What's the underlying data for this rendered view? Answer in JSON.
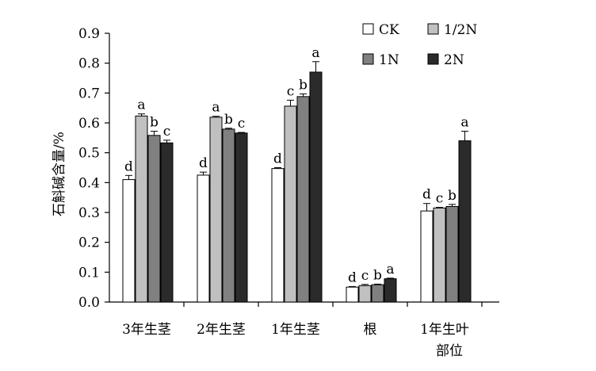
{
  "chart_data": {
    "type": "bar",
    "title": "",
    "xlabel": "",
    "ylabel": "石斛碱含量/%",
    "ylim": [
      0,
      0.9
    ],
    "yticks": [
      "0.0",
      "0.1",
      "0.2",
      "0.3",
      "0.4",
      "0.5",
      "0.6",
      "0.7",
      "0.8",
      "0.9"
    ],
    "grid": false,
    "legend_position": "top-right",
    "categories": [
      "3年生茎",
      "2年生茎",
      "1年生茎",
      "根",
      "1年生叶"
    ],
    "category_extra_line": "部位",
    "series": [
      {
        "name": "CK",
        "color": "#ffffff",
        "values": [
          0.41,
          0.425,
          0.447,
          0.05,
          0.305
        ],
        "errors": [
          0.014,
          0.01,
          0.003,
          0.002,
          0.025
        ],
        "sig": [
          "d",
          "d",
          "d",
          "d",
          "d"
        ]
      },
      {
        "name": "1/2N",
        "color": "#c0c0c0",
        "values": [
          0.623,
          0.619,
          0.656,
          0.055,
          0.315
        ],
        "errors": [
          0.007,
          0.003,
          0.02,
          0.004,
          0.002
        ],
        "sig": [
          "a",
          "a",
          "c",
          "c",
          "c"
        ]
      },
      {
        "name": "1N",
        "color": "#808080",
        "values": [
          0.558,
          0.579,
          0.688,
          0.058,
          0.32
        ],
        "errors": [
          0.014,
          0.003,
          0.009,
          0.002,
          0.007
        ],
        "sig": [
          "b",
          "b",
          "b",
          "b",
          "b"
        ]
      },
      {
        "name": "2N",
        "color": "#2b2b2b",
        "values": [
          0.533,
          0.566,
          0.77,
          0.078,
          0.54
        ],
        "errors": [
          0.009,
          0.002,
          0.035,
          0.002,
          0.032
        ],
        "sig": [
          "c",
          "c",
          "a",
          "a",
          "a"
        ]
      }
    ]
  }
}
